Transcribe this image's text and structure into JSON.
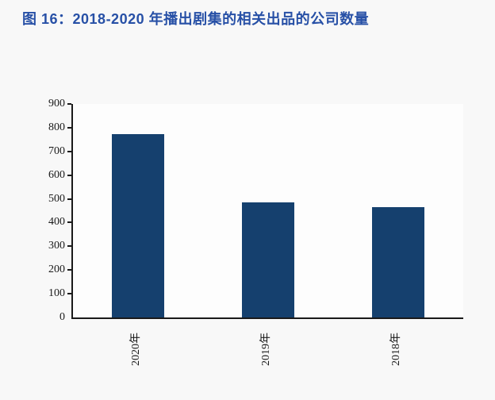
{
  "figure": {
    "title": "图 16：2018-2020 年播出剧集的相关出品的公司数量"
  },
  "chart_data": {
    "type": "bar",
    "title": "图 16：2018-2020 年播出剧集的相关出品的公司数量",
    "categories": [
      "2020年",
      "2019年",
      "2018年"
    ],
    "values": [
      773,
      485,
      465
    ],
    "xlabel": "",
    "ylabel": "",
    "ylim": [
      0,
      900
    ],
    "yticks": [
      0,
      100,
      200,
      300,
      400,
      500,
      600,
      700,
      800,
      900
    ],
    "grid": false,
    "legend": "none",
    "x_label_rotation_deg": -90,
    "bar_color": "#15406e"
  },
  "colors": {
    "title_text": "#2750a6",
    "bar": "#15406e",
    "axis": "#1a1a1a",
    "background": "#f8f8f8"
  }
}
